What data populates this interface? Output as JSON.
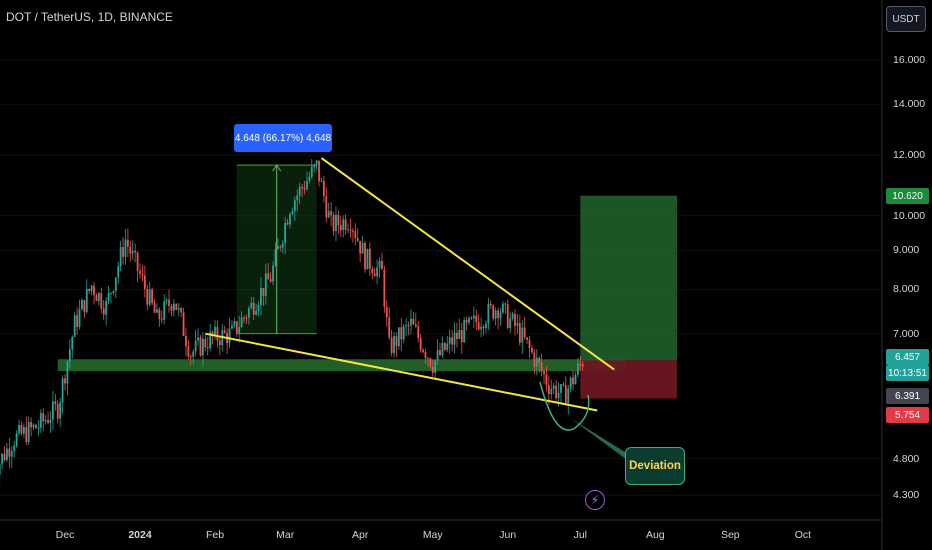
{
  "header": {
    "symbol_title": "DOT / TetherUS, 1D, BINANCE"
  },
  "currency_button": "USDT",
  "measure_label": "4.648 (66.17%) 4,648",
  "deviation_label": "Deviation",
  "price_badges": [
    {
      "value": "10.620",
      "color": "#1b8a3a"
    },
    {
      "value": "6.457",
      "color": "#22a29a"
    },
    {
      "value": "10:13:51",
      "color": "#22a29a"
    },
    {
      "value": "6.391",
      "color": "#434651"
    },
    {
      "value": "5.754",
      "color": "#e03b48"
    }
  ],
  "chart_data": {
    "type": "candlestick",
    "title": "DOT / TetherUS, 1D, BINANCE",
    "y_scale": "log",
    "y_ticks": [
      "16.000",
      "14.000",
      "12.000",
      "10.000",
      "9.000",
      "8.000",
      "7.000",
      "4.800",
      "4.300"
    ],
    "x_ticks": [
      "Dec",
      "2024",
      "Feb",
      "Mar",
      "Apr",
      "May",
      "Jun",
      "Jul",
      "Aug",
      "Sep",
      "Oct"
    ],
    "close_series": [
      {
        "date": "2023-11-01",
        "close": 4.6
      },
      {
        "date": "2023-11-10",
        "close": 5.1
      },
      {
        "date": "2023-11-20",
        "close": 5.3
      },
      {
        "date": "2023-11-28",
        "close": 5.6
      },
      {
        "date": "2023-12-05",
        "close": 7.2
      },
      {
        "date": "2023-12-12",
        "close": 8.1
      },
      {
        "date": "2023-12-18",
        "close": 7.6
      },
      {
        "date": "2023-12-26",
        "close": 9.3
      },
      {
        "date": "2024-01-02",
        "close": 8.2
      },
      {
        "date": "2024-01-08",
        "close": 7.3
      },
      {
        "date": "2024-01-15",
        "close": 7.8
      },
      {
        "date": "2024-01-22",
        "close": 6.6
      },
      {
        "date": "2024-01-30",
        "close": 6.9
      },
      {
        "date": "2024-02-08",
        "close": 7.0
      },
      {
        "date": "2024-02-16",
        "close": 7.6
      },
      {
        "date": "2024-02-24",
        "close": 8.3
      },
      {
        "date": "2024-03-03",
        "close": 10.3
      },
      {
        "date": "2024-03-08",
        "close": 10.9
      },
      {
        "date": "2024-03-14",
        "close": 11.6
      },
      {
        "date": "2024-03-20",
        "close": 9.7
      },
      {
        "date": "2024-03-28",
        "close": 9.9
      },
      {
        "date": "2024-04-03",
        "close": 8.8
      },
      {
        "date": "2024-04-10",
        "close": 8.4
      },
      {
        "date": "2024-04-13",
        "close": 6.7
      },
      {
        "date": "2024-04-22",
        "close": 7.2
      },
      {
        "date": "2024-05-01",
        "close": 6.4
      },
      {
        "date": "2024-05-10",
        "close": 6.9
      },
      {
        "date": "2024-05-20",
        "close": 7.3
      },
      {
        "date": "2024-05-28",
        "close": 7.6
      },
      {
        "date": "2024-06-05",
        "close": 7.1
      },
      {
        "date": "2024-06-12",
        "close": 6.5
      },
      {
        "date": "2024-06-18",
        "close": 6.0
      },
      {
        "date": "2024-06-24",
        "close": 5.8
      },
      {
        "date": "2024-06-28",
        "close": 6.1
      },
      {
        "date": "2024-07-02",
        "close": 6.457
      }
    ],
    "annotations": {
      "measure": {
        "start": "2024-02-10",
        "end": "2024-03-14",
        "from_price": 7.0,
        "to_price": 11.648,
        "text": "4.648 (66.17%) 4,648"
      },
      "support_zone": {
        "start": "2023-11-28",
        "end": "2024-07-20",
        "low": 6.25,
        "high": 6.48
      },
      "upper_trendline": {
        "from": [
          "2024-03-16",
          11.9
        ],
        "to": [
          "2024-07-15",
          6.28
        ]
      },
      "lower_trendline": {
        "from": [
          "2024-01-28",
          7.0
        ],
        "to": [
          "2024-07-08",
          5.55
        ]
      },
      "long_position": {
        "start": "2024-07-01",
        "end": "2024-08-10",
        "entry": 6.457,
        "target": 10.62,
        "stop": 5.754
      },
      "deviation_callout": "Deviation"
    }
  }
}
